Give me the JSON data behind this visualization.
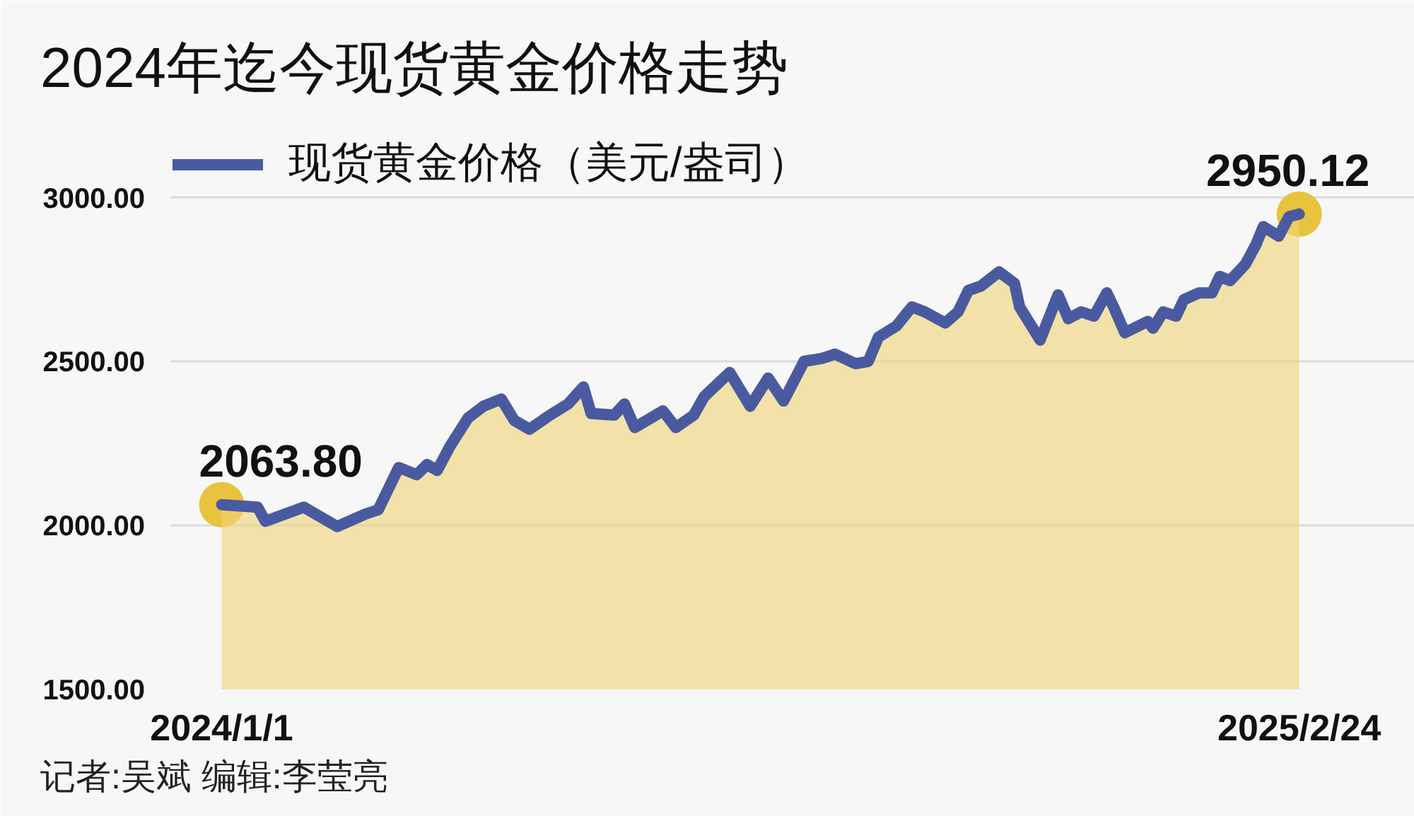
{
  "chart_data": {
    "type": "line",
    "title": "2024年迄今现货黄金价格走势",
    "x": [
      "2024-01-01",
      "2024-01-15",
      "2024-01-18",
      "2024-02-02",
      "2024-02-15",
      "2024-02-26",
      "2024-03-02",
      "2024-03-10",
      "2024-03-17",
      "2024-03-21",
      "2024-03-25",
      "2024-03-30",
      "2024-04-06",
      "2024-04-12",
      "2024-04-19",
      "2024-04-24",
      "2024-04-30",
      "2024-05-08",
      "2024-05-15",
      "2024-05-21",
      "2024-05-24",
      "2024-06-02",
      "2024-06-06",
      "2024-06-10",
      "2024-06-21",
      "2024-06-26",
      "2024-07-03",
      "2024-07-07",
      "2024-07-17",
      "2024-07-25",
      "2024-08-01",
      "2024-08-07",
      "2024-08-15",
      "2024-08-22",
      "2024-08-27",
      "2024-09-04",
      "2024-09-09",
      "2024-09-13",
      "2024-09-20",
      "2024-09-26",
      "2024-10-01",
      "2024-10-09",
      "2024-10-14",
      "2024-10-18",
      "2024-10-23",
      "2024-10-30",
      "2024-11-05",
      "2024-11-07",
      "2024-11-15",
      "2024-11-22",
      "2024-11-26",
      "2024-12-01",
      "2024-12-06",
      "2024-12-11",
      "2024-12-14",
      "2024-12-18",
      "2024-12-27",
      "2024-12-29",
      "2025-01-02",
      "2025-01-07",
      "2025-01-10",
      "2025-01-16",
      "2025-01-21",
      "2025-01-24",
      "2025-01-28",
      "2025-02-03",
      "2025-02-07",
      "2025-02-10",
      "2025-02-16",
      "2025-02-20",
      "2025-02-24"
    ],
    "series": [
      {
        "type": "area",
        "color": "#efd474",
        "values": [
          2063.8,
          2056,
          2013,
          2056,
          1997,
          2035,
          2048,
          2177,
          2155,
          2186,
          2168,
          2242,
          2328,
          2364,
          2386,
          2321,
          2294,
          2337,
          2371,
          2423,
          2342,
          2337,
          2371,
          2299,
          2350,
          2299,
          2337,
          2393,
          2467,
          2364,
          2450,
          2380,
          2501,
          2510,
          2523,
          2494,
          2501,
          2575,
          2609,
          2667,
          2652,
          2618,
          2652,
          2717,
          2731,
          2774,
          2739,
          2667,
          2566,
          2704,
          2631,
          2652,
          2639,
          2710,
          2661,
          2588,
          2623,
          2602,
          2652,
          2639,
          2689,
          2710,
          2710,
          2760,
          2747,
          2797,
          2855,
          2912,
          2883,
          2942,
          2950.12
        ]
      },
      {
        "name": "现货黄金价格（美元/盎司）",
        "color": "#4a5aa0",
        "values": [
          2063.8,
          2056,
          2013,
          2056,
          1997,
          2035,
          2048,
          2177,
          2155,
          2186,
          2168,
          2242,
          2328,
          2364,
          2386,
          2321,
          2294,
          2337,
          2371,
          2423,
          2342,
          2337,
          2371,
          2299,
          2350,
          2299,
          2337,
          2393,
          2467,
          2364,
          2450,
          2380,
          2501,
          2510,
          2523,
          2494,
          2501,
          2575,
          2609,
          2667,
          2652,
          2618,
          2652,
          2717,
          2731,
          2774,
          2739,
          2667,
          2566,
          2704,
          2631,
          2652,
          2639,
          2710,
          2661,
          2588,
          2623,
          2602,
          2652,
          2639,
          2689,
          2710,
          2710,
          2760,
          2747,
          2797,
          2855,
          2912,
          2883,
          2942,
          2950.12
        ],
        "value_labels": [
          "2063.80",
          null,
          null,
          null,
          null,
          null,
          null,
          null,
          null,
          null,
          null,
          null,
          null,
          null,
          null,
          null,
          null,
          null,
          null,
          null,
          null,
          null,
          null,
          null,
          null,
          null,
          null,
          null,
          null,
          null,
          null,
          null,
          null,
          null,
          null,
          null,
          null,
          null,
          null,
          null,
          null,
          null,
          null,
          null,
          null,
          null,
          null,
          null,
          null,
          null,
          null,
          null,
          null,
          null,
          null,
          null,
          null,
          null,
          null,
          null,
          null,
          null,
          null,
          null,
          null,
          null,
          null,
          null,
          null,
          null,
          "2950.12"
        ]
      }
    ],
    "xlim": [
      "2023-12-12",
      "2025-04-10"
    ],
    "xticks": [
      {
        "value": "2024-01-01",
        "label": "2024/1/1"
      },
      {
        "value": "2025-02-24",
        "label": "2025/2/24"
      }
    ],
    "ylim": [
      1500,
      3200
    ],
    "yticks": [
      {
        "value": 1500,
        "label": "1500.00"
      },
      {
        "value": 2000,
        "label": "2000.00"
      },
      {
        "value": 2500,
        "label": "2500.00"
      },
      {
        "value": 3000,
        "label": "3000.00"
      }
    ],
    "grid": "y",
    "legend": "top left",
    "annotations": [
      "记者:吴斌 编辑:李莹亮"
    ]
  }
}
